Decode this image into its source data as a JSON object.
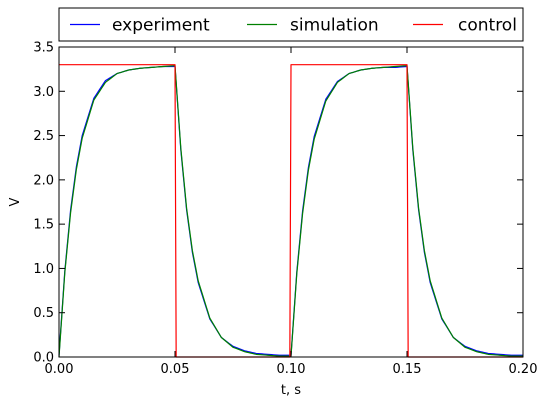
{
  "chart_data": {
    "type": "line",
    "title": "",
    "xlabel": "t, s",
    "ylabel": "V",
    "xlim": [
      0.0,
      0.2
    ],
    "ylim": [
      0.0,
      3.5
    ],
    "x_ticks": [
      0.0,
      0.05,
      0.1,
      0.15,
      0.2
    ],
    "x_tick_labels": [
      "0.00",
      "0.05",
      "0.10",
      "0.15",
      "0.20"
    ],
    "y_ticks": [
      0.0,
      0.5,
      1.0,
      1.5,
      2.0,
      2.5,
      3.0,
      3.5
    ],
    "y_tick_labels": [
      "0.0",
      "0.5",
      "1.0",
      "1.5",
      "2.0",
      "2.5",
      "3.0",
      "3.5"
    ],
    "grid": false,
    "legend": {
      "placement": "top-outside",
      "columns": 3
    },
    "series": [
      {
        "name": "experiment",
        "color": "#0000ff",
        "x": [
          0.0,
          0.0025,
          0.005,
          0.0075,
          0.01,
          0.015,
          0.02,
          0.025,
          0.03,
          0.035,
          0.04,
          0.045,
          0.05,
          0.0525,
          0.055,
          0.0575,
          0.06,
          0.065,
          0.07,
          0.075,
          0.08,
          0.085,
          0.09,
          0.095,
          0.1,
          0.1025,
          0.105,
          0.1075,
          0.11,
          0.115,
          0.12,
          0.125,
          0.13,
          0.135,
          0.14,
          0.145,
          0.15,
          0.1525,
          0.155,
          0.1575,
          0.16,
          0.165,
          0.17,
          0.175,
          0.18,
          0.185,
          0.19,
          0.195,
          0.2
        ],
        "y": [
          0.02,
          0.97,
          1.66,
          2.15,
          2.5,
          2.92,
          3.12,
          3.2,
          3.24,
          3.26,
          3.27,
          3.28,
          3.28,
          2.34,
          1.66,
          1.18,
          0.84,
          0.43,
          0.22,
          0.12,
          0.07,
          0.04,
          0.03,
          0.02,
          0.02,
          0.96,
          1.65,
          2.14,
          2.49,
          2.91,
          3.11,
          3.2,
          3.24,
          3.26,
          3.27,
          3.27,
          3.28,
          2.34,
          1.66,
          1.18,
          0.84,
          0.43,
          0.22,
          0.12,
          0.07,
          0.04,
          0.03,
          0.02,
          0.02
        ]
      },
      {
        "name": "simulation",
        "color": "#008000",
        "x": [
          0.0,
          0.0025,
          0.005,
          0.0075,
          0.01,
          0.015,
          0.02,
          0.025,
          0.03,
          0.035,
          0.04,
          0.045,
          0.05,
          0.0525,
          0.055,
          0.0575,
          0.06,
          0.065,
          0.07,
          0.075,
          0.08,
          0.085,
          0.09,
          0.095,
          0.1,
          0.1025,
          0.105,
          0.1075,
          0.11,
          0.115,
          0.12,
          0.125,
          0.13,
          0.135,
          0.14,
          0.145,
          0.15,
          0.1525,
          0.155,
          0.1575,
          0.16,
          0.165,
          0.17,
          0.175,
          0.18,
          0.185,
          0.19,
          0.195,
          0.2
        ],
        "y": [
          0.0,
          0.95,
          1.63,
          2.12,
          2.47,
          2.9,
          3.1,
          3.2,
          3.24,
          3.26,
          3.27,
          3.28,
          3.29,
          2.36,
          1.68,
          1.2,
          0.86,
          0.44,
          0.22,
          0.11,
          0.06,
          0.03,
          0.02,
          0.01,
          0.01,
          0.94,
          1.62,
          2.11,
          2.46,
          2.89,
          3.1,
          3.2,
          3.24,
          3.26,
          3.27,
          3.28,
          3.29,
          2.36,
          1.68,
          1.2,
          0.86,
          0.44,
          0.22,
          0.11,
          0.06,
          0.03,
          0.02,
          0.01,
          0.01
        ]
      },
      {
        "name": "control",
        "color": "#ff0000",
        "x": [
          0.0,
          0.05,
          0.0505,
          0.0995,
          0.1,
          0.15,
          0.1505,
          0.2
        ],
        "y": [
          3.3,
          3.3,
          0.0,
          0.0,
          3.3,
          3.3,
          0.0,
          0.0
        ]
      }
    ]
  }
}
